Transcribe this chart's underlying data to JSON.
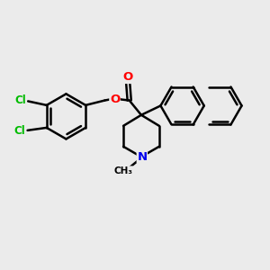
{
  "background_color": "#ebebeb",
  "bond_color": "#000000",
  "bond_width": 1.8,
  "atom_colors": {
    "Cl": "#00bb00",
    "O": "#ff0000",
    "N": "#0000ee",
    "C": "#000000"
  },
  "figsize": [
    3.0,
    3.0
  ],
  "dpi": 100
}
